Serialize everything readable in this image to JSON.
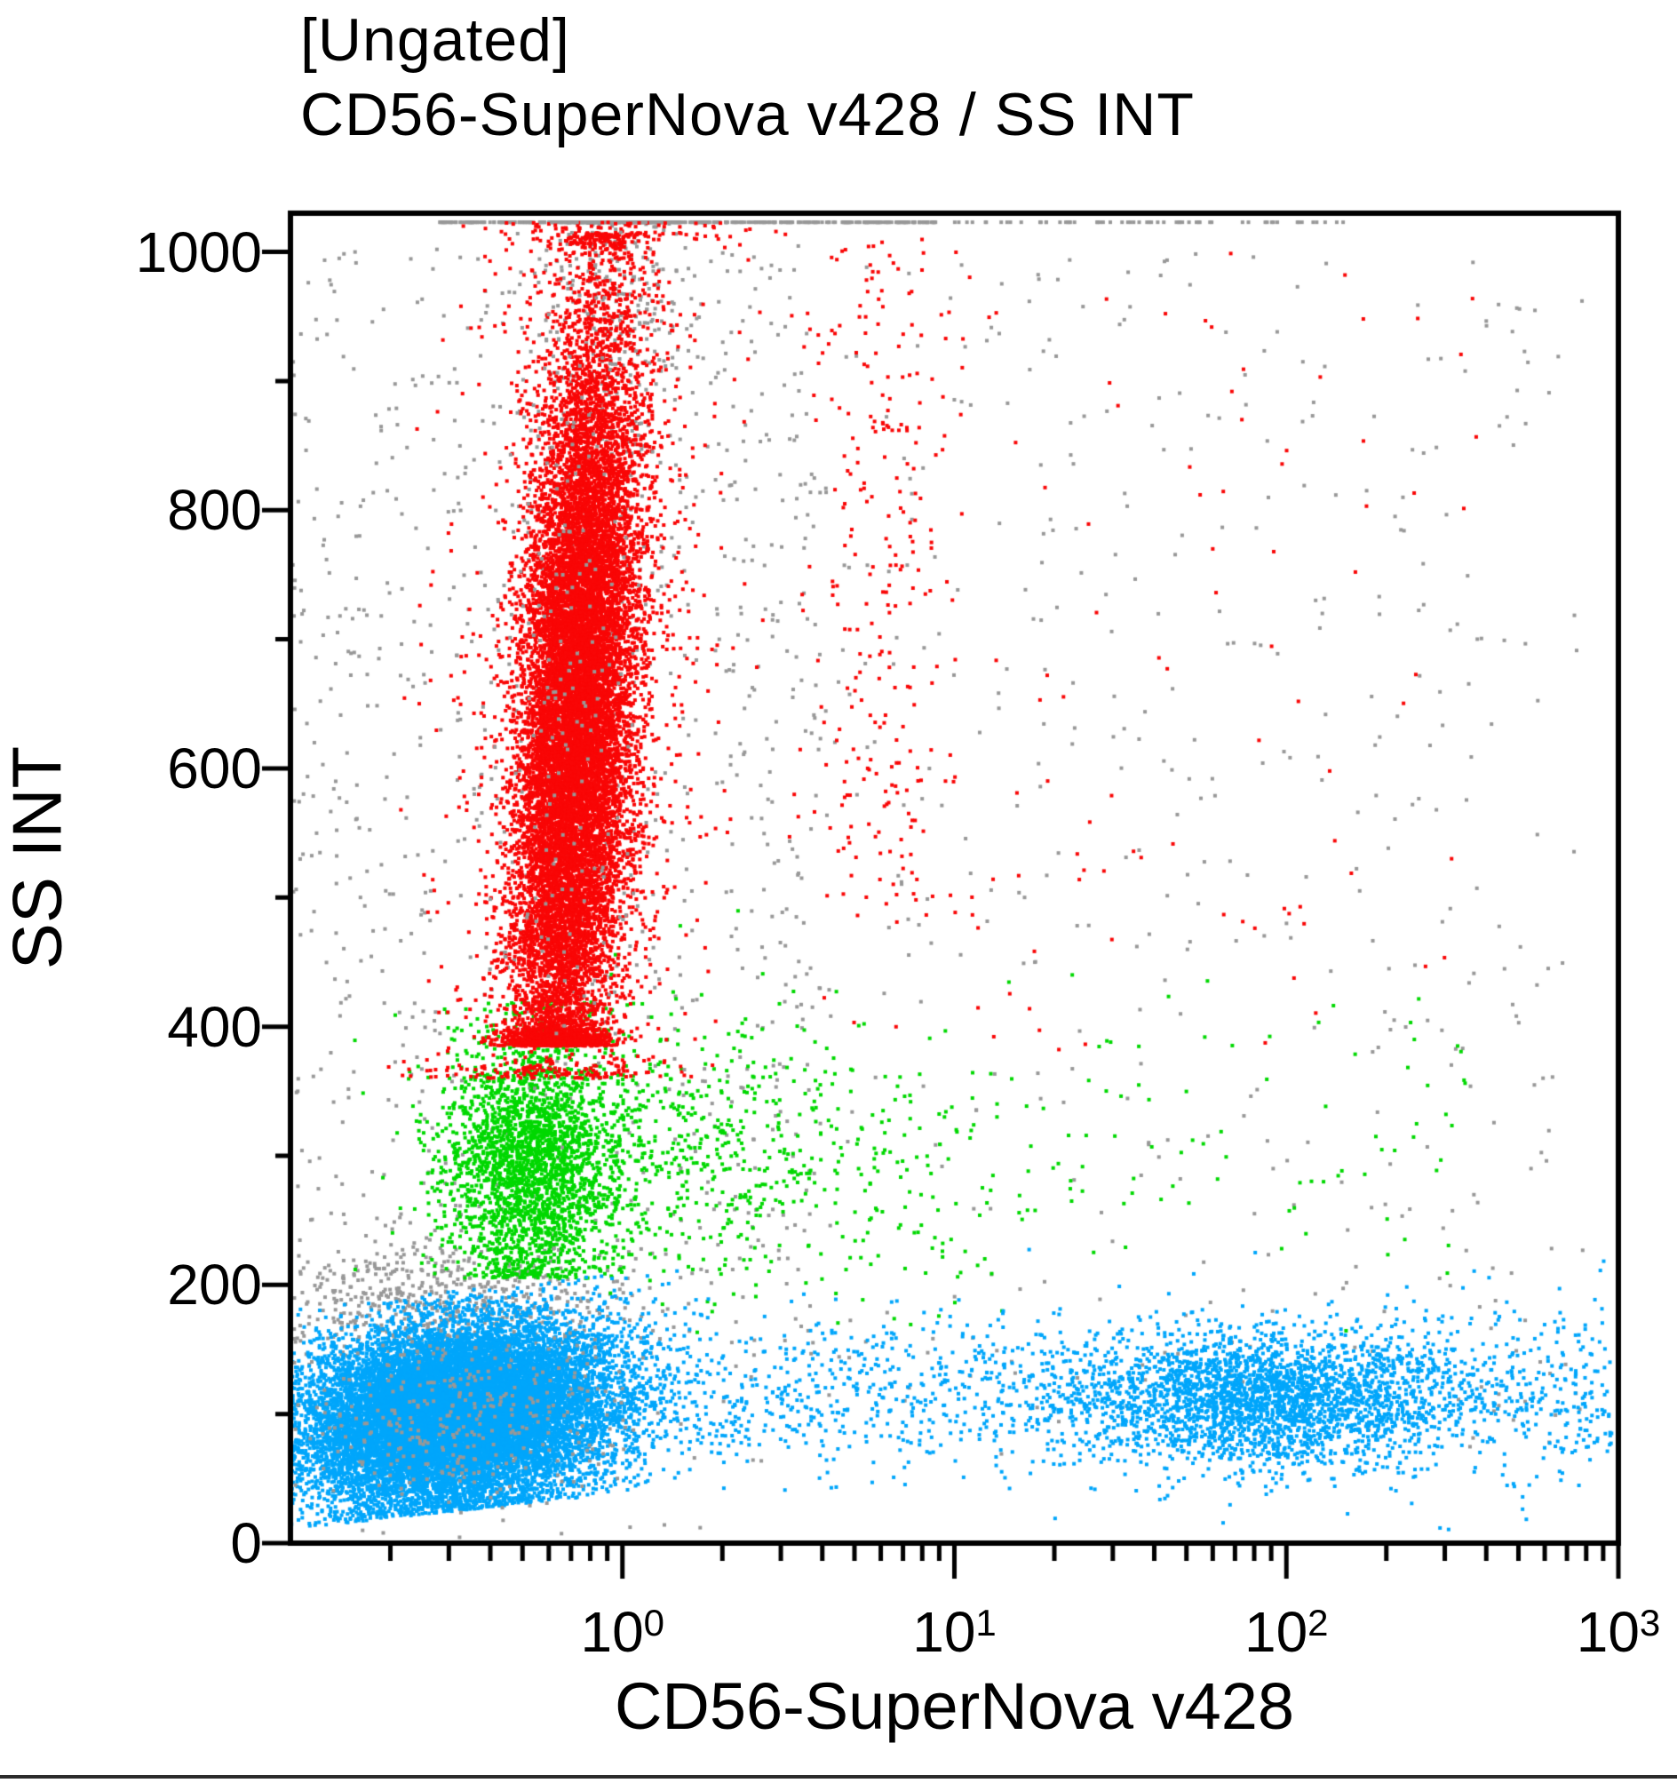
{
  "title": {
    "line1": "[Ungated]",
    "line2": "CD56-SuperNova v428 / SS INT"
  },
  "axes": {
    "x": {
      "label": "CD56-SuperNova v428",
      "scale": "log",
      "min_log10": -1,
      "max_log10": 3,
      "major_ticks": [
        {
          "base": "10",
          "exp": "0",
          "log10": 0
        },
        {
          "base": "10",
          "exp": "1",
          "log10": 1
        },
        {
          "base": "10",
          "exp": "2",
          "log10": 2
        },
        {
          "base": "10",
          "exp": "3",
          "log10": 3
        }
      ],
      "minor_tick_pattern": [
        2,
        3,
        4,
        5,
        6,
        7,
        8,
        9
      ]
    },
    "y": {
      "label": "SS INT",
      "scale": "linear",
      "min": 0,
      "max": 1023,
      "major_ticks": [
        0,
        200,
        400,
        600,
        800,
        1000
      ],
      "minor_ticks": [
        100,
        300,
        500,
        700,
        900
      ]
    }
  },
  "colors": {
    "red": "#f90606",
    "green": "#00d801",
    "blue": "#00a6fb",
    "gray": "#989898",
    "axis": "#000000"
  },
  "chart_data": {
    "type": "scatter",
    "title": "[Ungated] CD56-SuperNova v428 / SS INT",
    "xlabel": "CD56-SuperNova v428",
    "ylabel": "SS INT",
    "x_range_log10": [
      -1,
      3
    ],
    "y_range": [
      0,
      1023
    ],
    "grid": false,
    "legend": "none",
    "clusters": [
      {
        "name": "background-debris-left",
        "color": "gray",
        "n": 900,
        "x": {
          "dist": "uniform_log",
          "lo": -1.0,
          "hi": 0.6
        },
        "y": {
          "dist": "uniform",
          "lo": 150,
          "hi": 1005
        }
      },
      {
        "name": "background-debris-right",
        "color": "gray",
        "n": 500,
        "x": {
          "dist": "uniform_log",
          "lo": 0.3,
          "hi": 2.9
        },
        "y": {
          "dist": "uniform",
          "lo": 60,
          "hi": 1000
        }
      },
      {
        "name": "saturated-top-column",
        "color": "gray",
        "n": 430,
        "x": {
          "dist": "gauss_log",
          "mean": -0.02,
          "sd": 0.12
        },
        "y": {
          "dist": "gauss",
          "mean": 1000,
          "sd": 95,
          "lo": 700,
          "hi": 1023,
          "pile_hi": true
        }
      },
      {
        "name": "saturated-top-row",
        "color": "gray",
        "n": 330,
        "x": {
          "dist": "uniform_log",
          "lo": -0.55,
          "hi": 0.95
        },
        "y": {
          "dist": "const",
          "value": 1023
        }
      },
      {
        "name": "saturated-top-row-sparse",
        "color": "gray",
        "n": 60,
        "x": {
          "dist": "uniform_log",
          "lo": 0.95,
          "hi": 2.2
        },
        "y": {
          "dist": "const",
          "value": 1023
        }
      },
      {
        "name": "gray-band-mid-ss",
        "color": "gray",
        "n": 580,
        "x": {
          "dist": "gauss_log",
          "mean": -0.55,
          "sd": 0.28
        },
        "y": {
          "dist": "gauss",
          "mean": 185,
          "sd": 22
        }
      },
      {
        "name": "left-edge-pileup-gray",
        "color": "gray",
        "n": 130,
        "x": {
          "dist": "const",
          "value": -1
        },
        "y": {
          "dist": "uniform",
          "lo": 40,
          "hi": 205
        }
      },
      {
        "name": "monocytes-green-core",
        "color": "green",
        "n": 2750,
        "x": {
          "dist": "gauss_log",
          "mean": -0.27,
          "sd": 0.13
        },
        "y": {
          "dist": "gauss",
          "mean": 295,
          "sd": 52,
          "lo": 205,
          "hi": 420
        }
      },
      {
        "name": "monocytes-green-right-spread",
        "color": "green",
        "n": 620,
        "x": {
          "dist": "gauss_log",
          "mean": 0.35,
          "sd": 0.45,
          "lo": -0.05,
          "hi": 1.6
        },
        "y": {
          "dist": "gauss",
          "mean": 300,
          "sd": 55
        }
      },
      {
        "name": "monocytes-green-far-scatter",
        "color": "green",
        "n": 70,
        "x": {
          "dist": "uniform_log",
          "lo": 1.3,
          "hi": 2.6
        },
        "y": {
          "dist": "gauss",
          "mean": 310,
          "sd": 70
        }
      },
      {
        "name": "granulocytes-red-core",
        "color": "red",
        "n": 15200,
        "x": {
          "dist": "gauss_log",
          "mean": -0.14,
          "sd": 0.085
        },
        "xy_slope": 0.00022,
        "y": {
          "dist": "gauss",
          "mean": 640,
          "sd": 155,
          "lo": 385,
          "hi": 1015
        }
      },
      {
        "name": "granulocytes-red-halo",
        "color": "red",
        "n": 1350,
        "x": {
          "dist": "gauss_log",
          "mean": -0.14,
          "sd": 0.19
        },
        "xy_slope": 0.00022,
        "y": {
          "dist": "gauss",
          "mean": 640,
          "sd": 235,
          "lo": 360,
          "hi": 1023
        }
      },
      {
        "name": "red-secondary-streak",
        "color": "red",
        "n": 240,
        "x": {
          "dist": "gauss_log",
          "mean": 0.78,
          "sd": 0.1
        },
        "y": {
          "dist": "uniform",
          "lo": 480,
          "hi": 1010
        }
      },
      {
        "name": "red-right-scatter",
        "color": "red",
        "n": 160,
        "x": {
          "dist": "uniform_log",
          "lo": -0.3,
          "hi": 2.6
        },
        "y": {
          "dist": "uniform",
          "lo": 380,
          "hi": 1000
        }
      },
      {
        "name": "gray-overlay-in-red",
        "color": "gray",
        "n": 210,
        "x": {
          "dist": "gauss_log",
          "mean": -0.14,
          "sd": 0.11
        },
        "y": {
          "dist": "gauss",
          "mean": 700,
          "sd": 180
        }
      },
      {
        "name": "lymphocytes-blue-core",
        "color": "blue",
        "n": 16800,
        "x": {
          "dist": "gauss_log",
          "mean": -0.5,
          "sd": 0.23,
          "pile_lo": true
        },
        "yx_slope": 28,
        "y": {
          "dist": "gauss",
          "mean": 100,
          "sd": 34,
          "lo": 25,
          "hi": 195
        }
      },
      {
        "name": "blue-bridge-mid",
        "color": "blue",
        "n": 760,
        "x": {
          "dist": "uniform_log",
          "lo": 0.0,
          "hi": 1.55
        },
        "y": {
          "dist": "gauss",
          "mean": 115,
          "sd": 30
        }
      },
      {
        "name": "cd56-pos-nk-blue",
        "color": "blue",
        "n": 2750,
        "x": {
          "dist": "gauss_log",
          "mean": 1.93,
          "sd": 0.28,
          "lo": 1.2,
          "hi": 2.95
        },
        "y": {
          "dist": "gauss",
          "mean": 112,
          "sd": 26
        }
      },
      {
        "name": "blue-far-right-sparse",
        "color": "blue",
        "n": 430,
        "x": {
          "dist": "uniform_log",
          "lo": 2.2,
          "hi": 2.98
        },
        "y": {
          "dist": "gauss",
          "mean": 115,
          "sd": 35
        }
      },
      {
        "name": "left-edge-pileup-blue",
        "color": "blue",
        "n": 90,
        "x": {
          "dist": "const",
          "value": -1
        },
        "y": {
          "dist": "uniform",
          "lo": 40,
          "hi": 190
        }
      },
      {
        "name": "gray-overlay-in-blue",
        "color": "gray",
        "n": 360,
        "x": {
          "dist": "gauss_log",
          "mean": -0.45,
          "sd": 0.25
        },
        "y": {
          "dist": "gauss",
          "mean": 100,
          "sd": 35
        }
      }
    ]
  }
}
